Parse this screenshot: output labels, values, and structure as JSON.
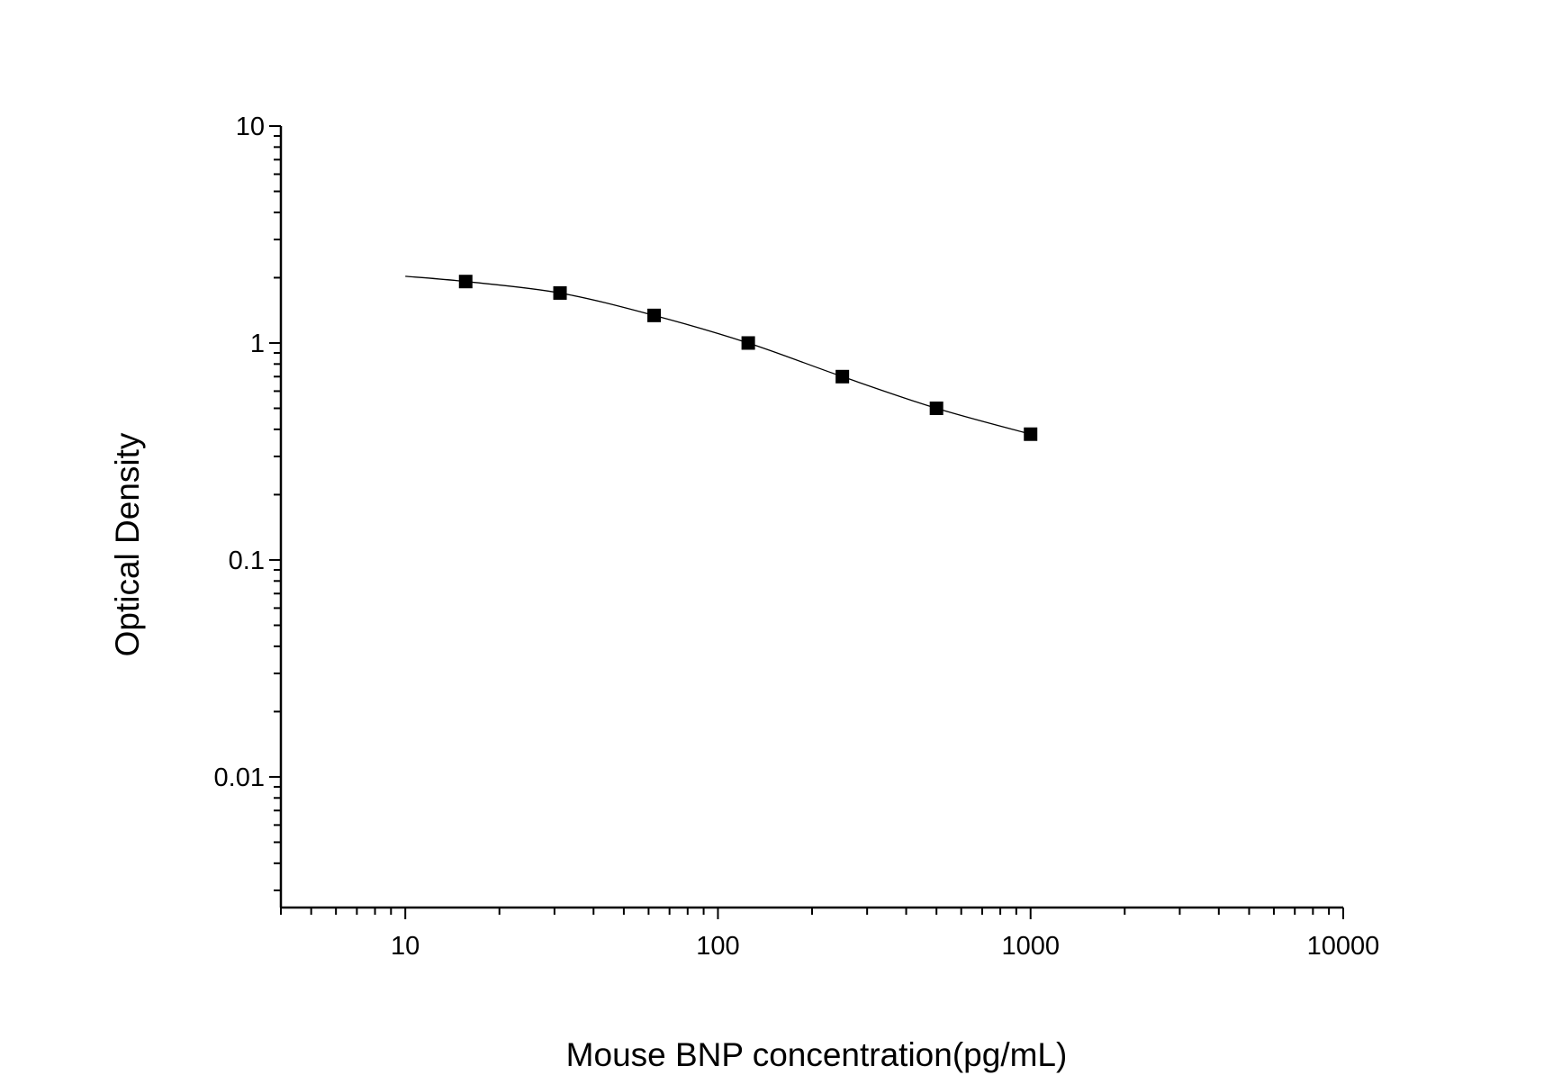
{
  "chart_data": {
    "type": "scatter",
    "title": "",
    "xlabel": "Mouse BNP concentration(pg/mL)",
    "ylabel": "Optical Density",
    "xscale": "log",
    "yscale": "log",
    "xlim": [
      4,
      10000
    ],
    "ylim": [
      0.0025,
      10
    ],
    "xticks": [
      "10",
      "100",
      "1000",
      "10000"
    ],
    "yticks": [
      "0.01",
      "0.1",
      "1",
      "10"
    ],
    "grid": false,
    "legend": "none",
    "series": [
      {
        "x": [
          15.6,
          31.25,
          62.5,
          125,
          250,
          500,
          1000
        ],
        "y": [
          1.92,
          1.7,
          1.34,
          1.0,
          0.7,
          0.5,
          0.38
        ],
        "marker": "square",
        "fit_curve": true,
        "fit_start": [
          10,
          2.03
        ],
        "color": "#000000"
      }
    ]
  }
}
